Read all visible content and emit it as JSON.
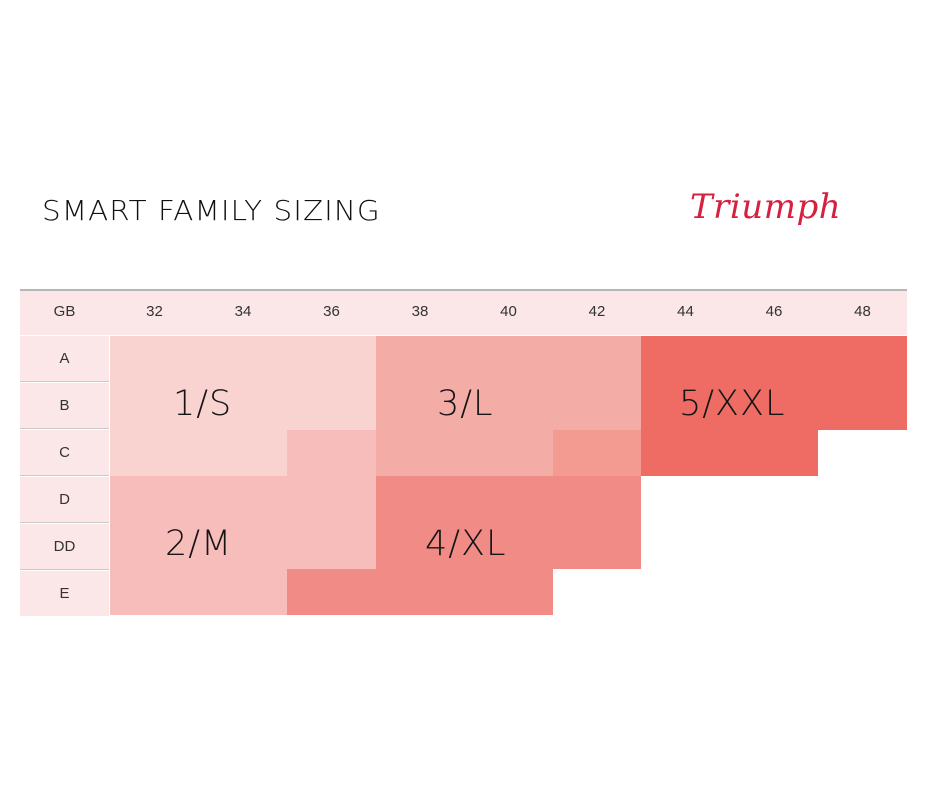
{
  "title": "SMART FAMILY SIZING",
  "brand": "Triumph",
  "table": {
    "corner": "GB",
    "band_sizes": [
      "32",
      "34",
      "36",
      "38",
      "40",
      "42",
      "44",
      "46",
      "48"
    ],
    "cup_sizes": [
      "A",
      "B",
      "C",
      "D",
      "DD",
      "E"
    ]
  },
  "size_labels": {
    "s1": "1/S",
    "s2": "2/M",
    "s3": "3/L",
    "s4": "4/XL",
    "s5": "5/XXL"
  },
  "colors": {
    "header_bg": "#fbe6e8",
    "size_1": "#f9d3cf",
    "size_2": "#f7bdbb",
    "size_3": "#f4aca6",
    "size_4": "#f18b85",
    "size_5": "#ee6c64",
    "brand": "#d6203f"
  }
}
